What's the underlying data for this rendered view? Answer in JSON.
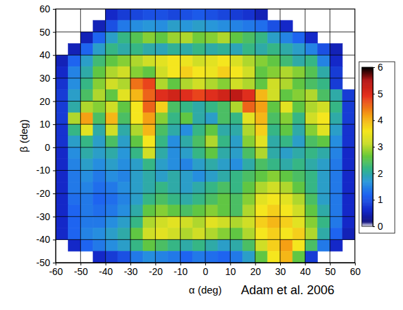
{
  "chart_data": {
    "type": "heatmap",
    "xlabel": "α (deg)",
    "ylabel": "β (deg)",
    "annotation": "Adam et al. 2006",
    "xlim": [
      -60,
      60
    ],
    "ylim": [
      -50,
      60
    ],
    "xticks": [
      -60,
      -50,
      -40,
      -30,
      -20,
      -10,
      0,
      10,
      20,
      30,
      40,
      50,
      60
    ],
    "yticks": [
      -50,
      -40,
      -30,
      -20,
      -10,
      0,
      10,
      20,
      30,
      40,
      50,
      60
    ],
    "grid": true,
    "colorbar_range": [
      0,
      6
    ],
    "colorbar_ticks": [
      0,
      1,
      2,
      3,
      4,
      5,
      6
    ],
    "x": [
      -57.5,
      -52.5,
      -47.5,
      -42.5,
      -37.5,
      -32.5,
      -27.5,
      -22.5,
      -17.5,
      -12.5,
      -7.5,
      -2.5,
      2.5,
      7.5,
      12.5,
      17.5,
      22.5,
      27.5,
      32.5,
      37.5,
      42.5,
      47.5,
      52.5,
      57.5
    ],
    "y": [
      57.5,
      52.5,
      47.5,
      42.5,
      37.5,
      32.5,
      27.5,
      22.5,
      17.5,
      12.5,
      7.5,
      2.5,
      -2.5,
      -7.5,
      -12.5,
      -17.5,
      -22.5,
      -27.5,
      -32.5,
      -37.5,
      -42.5,
      -47.5
    ],
    "z": [
      [
        null,
        null,
        null,
        null,
        0.6,
        0.8,
        0.9,
        1.0,
        1.0,
        0.9,
        1.0,
        1.1,
        1.0,
        0.9,
        0.8,
        0.7,
        0.5,
        null,
        null,
        null,
        null,
        null,
        null,
        null
      ],
      [
        null,
        null,
        null,
        0.5,
        1.0,
        1.4,
        1.6,
        1.7,
        1.6,
        1.8,
        1.7,
        1.8,
        1.7,
        1.6,
        1.5,
        1.4,
        1.3,
        1.0,
        0.6,
        null,
        null,
        null,
        null,
        null
      ],
      [
        null,
        null,
        0.5,
        1.2,
        1.8,
        2.2,
        2.5,
        2.8,
        2.6,
        2.9,
        3.0,
        2.7,
        2.8,
        3.0,
        2.6,
        2.4,
        2.2,
        1.8,
        1.5,
        1.2,
        0.6,
        null,
        null,
        null
      ],
      [
        null,
        0.5,
        1.2,
        1.8,
        2.2,
        2.0,
        2.2,
        2.0,
        1.9,
        2.1,
        2.0,
        2.2,
        2.0,
        2.1,
        1.9,
        2.2,
        2.0,
        2.2,
        2.0,
        1.8,
        1.5,
        1.0,
        0.5,
        null
      ],
      [
        0.5,
        1.2,
        1.8,
        2.3,
        2.6,
        2.8,
        3.0,
        3.2,
        3.4,
        3.6,
        3.5,
        3.2,
        3.4,
        3.6,
        3.3,
        3.0,
        2.8,
        2.6,
        2.3,
        2.0,
        2.2,
        1.5,
        0.6,
        null
      ],
      [
        0.6,
        1.5,
        2.0,
        2.6,
        3.0,
        3.2,
        2.8,
        2.6,
        3.2,
        3.6,
        3.8,
        3.6,
        3.5,
        3.8,
        3.6,
        3.2,
        2.6,
        2.8,
        3.0,
        2.8,
        2.5,
        2.0,
        0.8,
        null
      ],
      [
        0.7,
        1.6,
        2.2,
        2.8,
        3.2,
        3.0,
        4.5,
        4.8,
        3.0,
        2.6,
        3.0,
        3.2,
        3.0,
        2.8,
        3.2,
        3.0,
        2.6,
        3.2,
        3.0,
        2.6,
        2.4,
        2.2,
        0.8,
        null
      ],
      [
        0.8,
        1.8,
        2.4,
        3.0,
        2.6,
        3.4,
        4.0,
        4.6,
        5.0,
        5.2,
        5.0,
        4.8,
        5.0,
        5.2,
        5.4,
        5.0,
        4.0,
        3.2,
        2.6,
        2.8,
        3.0,
        2.4,
        2.0,
        0.8
      ],
      [
        0.8,
        2.0,
        3.0,
        2.8,
        3.2,
        2.6,
        3.6,
        4.6,
        3.8,
        2.4,
        2.2,
        2.0,
        2.2,
        2.4,
        3.0,
        4.6,
        4.2,
        2.6,
        3.4,
        2.6,
        3.0,
        3.2,
        2.2,
        0.8
      ],
      [
        0.8,
        3.0,
        4.2,
        2.4,
        4.0,
        2.4,
        3.6,
        4.2,
        2.8,
        2.2,
        2.6,
        2.0,
        1.8,
        2.4,
        2.2,
        3.4,
        4.0,
        2.4,
        2.8,
        2.2,
        3.2,
        3.6,
        2.0,
        0.8
      ],
      [
        0.7,
        2.2,
        3.4,
        2.0,
        3.2,
        2.0,
        3.0,
        4.0,
        2.4,
        2.0,
        1.6,
        2.2,
        2.6,
        2.0,
        2.0,
        3.0,
        3.8,
        2.2,
        2.6,
        2.0,
        2.8,
        3.4,
        1.8,
        0.7
      ],
      [
        0.7,
        1.8,
        2.2,
        1.8,
        2.4,
        1.8,
        2.6,
        3.6,
        2.2,
        1.6,
        2.0,
        2.4,
        3.0,
        2.2,
        1.8,
        2.8,
        3.4,
        2.0,
        2.2,
        1.8,
        2.4,
        2.6,
        1.6,
        0.7
      ],
      [
        0.6,
        1.6,
        2.0,
        1.8,
        2.0,
        1.7,
        2.2,
        3.2,
        2.0,
        1.6,
        1.8,
        2.2,
        2.6,
        2.0,
        1.8,
        2.4,
        3.0,
        2.0,
        1.8,
        2.0,
        2.2,
        2.0,
        1.5,
        0.6
      ],
      [
        0.6,
        1.5,
        1.8,
        1.6,
        1.8,
        1.6,
        1.8,
        2.2,
        1.8,
        1.6,
        1.5,
        1.8,
        2.0,
        1.8,
        1.6,
        2.0,
        2.4,
        2.2,
        2.0,
        2.2,
        2.0,
        1.8,
        1.4,
        0.6
      ],
      [
        0.6,
        1.4,
        1.6,
        1.4,
        1.6,
        1.5,
        1.8,
        2.0,
        1.8,
        2.0,
        1.8,
        1.6,
        1.8,
        2.0,
        2.2,
        2.4,
        2.6,
        2.8,
        2.6,
        2.4,
        2.2,
        1.8,
        1.4,
        0.6
      ],
      [
        0.6,
        1.4,
        1.5,
        1.3,
        1.4,
        1.6,
        1.8,
        2.0,
        2.2,
        2.0,
        1.8,
        2.0,
        2.2,
        2.4,
        2.2,
        2.6,
        3.0,
        3.2,
        3.0,
        2.6,
        2.2,
        1.8,
        1.4,
        0.6
      ],
      [
        0.6,
        1.3,
        1.4,
        1.2,
        1.3,
        1.5,
        1.8,
        2.2,
        2.4,
        2.2,
        2.0,
        2.2,
        2.4,
        2.6,
        2.4,
        2.8,
        3.4,
        3.6,
        3.4,
        3.0,
        2.4,
        1.8,
        1.4,
        0.6
      ],
      [
        0.6,
        1.2,
        1.4,
        1.3,
        1.4,
        1.6,
        2.0,
        2.6,
        2.8,
        2.6,
        2.4,
        2.6,
        2.8,
        2.6,
        2.4,
        3.0,
        3.6,
        3.8,
        3.6,
        3.2,
        2.6,
        2.0,
        1.4,
        0.6
      ],
      [
        0.6,
        1.2,
        1.4,
        1.4,
        1.6,
        1.8,
        2.2,
        3.0,
        3.2,
        3.4,
        3.2,
        3.0,
        3.4,
        3.2,
        3.0,
        3.2,
        3.8,
        4.0,
        3.8,
        3.4,
        2.8,
        2.2,
        1.4,
        0.6
      ],
      [
        0.6,
        1.2,
        1.5,
        1.6,
        1.8,
        2.0,
        2.6,
        3.2,
        3.4,
        3.2,
        3.0,
        3.2,
        3.0,
        2.8,
        2.6,
        3.0,
        3.6,
        3.8,
        3.6,
        3.8,
        3.0,
        2.0,
        1.2,
        0.5
      ],
      [
        null,
        0.6,
        1.2,
        1.4,
        1.6,
        1.8,
        2.2,
        2.6,
        2.4,
        2.2,
        2.0,
        2.2,
        2.0,
        1.8,
        2.0,
        2.4,
        3.2,
        3.8,
        4.2,
        3.6,
        2.4,
        1.4,
        0.6,
        null
      ],
      [
        null,
        null,
        null,
        0.6,
        0.8,
        1.0,
        1.4,
        1.6,
        1.5,
        1.4,
        1.2,
        1.4,
        1.3,
        1.2,
        1.4,
        1.8,
        2.6,
        3.6,
        4.0,
        2.6,
        0.8,
        null,
        null,
        null
      ]
    ]
  }
}
